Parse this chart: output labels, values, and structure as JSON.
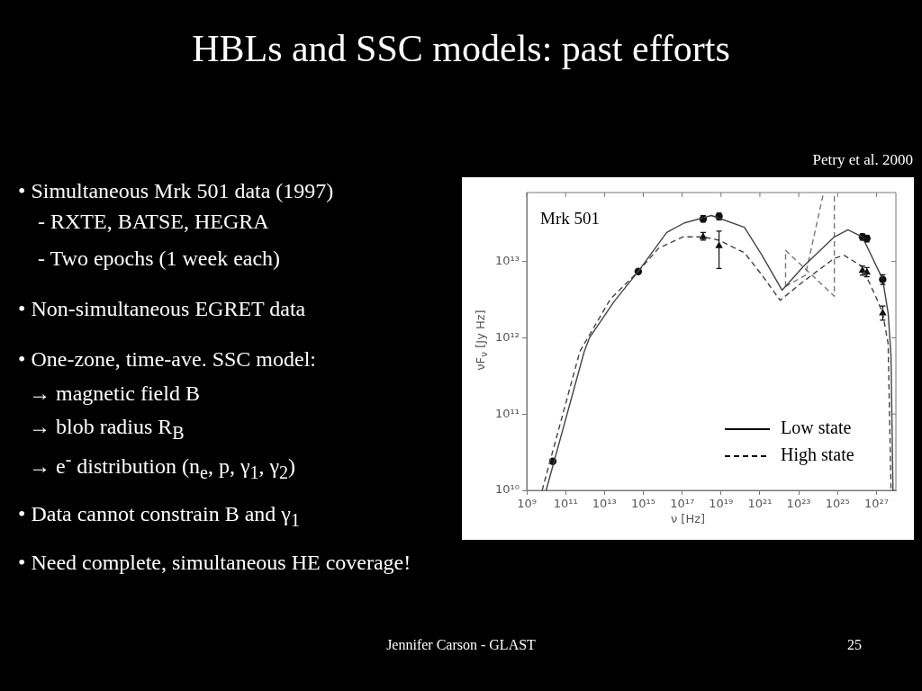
{
  "chart_data": {
    "type": "line",
    "title": "HBLs and SSC models: past efforts",
    "xlabel": "ν [Hz]",
    "ylabel": "νF$_{ν}$ [Jy Hz]",
    "log": "xy",
    "legend": "bottom right",
    "xlim": [
      1000000000.0,
      1e+28
    ],
    "ylim": [
      10000000000.0,
      80000000000000.0
    ],
    "xticks": [
      {
        "value": 1000000000.0,
        "label": "10⁹"
      },
      {
        "value": 100000000000.0,
        "label": "10¹¹"
      },
      {
        "value": 10000000000000.0,
        "label": "10¹³"
      },
      {
        "value": 1000000000000000.0,
        "label": "10¹⁵"
      },
      {
        "value": 1e+17,
        "label": "10¹⁷"
      },
      {
        "value": 1e+19,
        "label": "10¹⁹"
      },
      {
        "value": 1e+21,
        "label": "10²¹"
      },
      {
        "value": 1e+23,
        "label": "10²³"
      },
      {
        "value": 1e+25,
        "label": "10²⁵"
      },
      {
        "value": 1e+27,
        "label": "10²⁷"
      }
    ],
    "yticks": [
      {
        "value": 10000000000.0,
        "label": "10¹⁰"
      },
      {
        "value": 100000000000.0,
        "label": "10¹¹"
      },
      {
        "value": 1000000000000.0,
        "label": "10¹²"
      },
      {
        "value": 10000000000000.0,
        "label": "10¹³"
      }
    ],
    "annotations": [
      "Petry et al. 2000",
      "• Simultaneous Mrk 501 data (1997)",
      "- RXTE, BATSE, HEGRA",
      "- Two epochs (1 week each)",
      "• Non-simultaneous EGRET data",
      "• One-zone, time-ave. SSC model:",
      "→ magnetic field B",
      "→ blob radius R$_{B}$",
      "→ e$^{-}$ distribution (n$_{e}$, p, γ$_{1}$, γ$_{2}$)",
      "• Data cannot constrain B and γ$_{1}$",
      "• Need complete, simultaneous HE coverage!",
      "Mrk 501",
      "Jennifer Carson - GLAST",
      "25"
    ],
    "series": [
      {
        "type": "line",
        "name": "Low state",
        "color": "#444444",
        "line_style": "solid",
        "marker": "none",
        "x": [
          10000000000.0,
          910000000000.0,
          1700000000000.0,
          32000000000000.0,
          550000000000000.0,
          1.6e+16,
          1.3e+17,
          3.2e+18,
          1.6e+20,
          1.3e+21,
          7.9e+21,
          1.4e+22,
          1.8e+23,
          6.8e+24,
          3.4e+25,
          1.9e+26,
          2.1e+27,
          4e+27,
          5.6e+27,
          7.1e+27
        ],
        "values": [
          10000000000.0,
          660000000000.0,
          1000000000000.0,
          3000000000000.0,
          7400000000000.0,
          24000000000000.0,
          32000000000000.0,
          40000000000000.0,
          28000000000000.0,
          12000000000000.0,
          5400000000000.0,
          4200000000000.0,
          8700000000000.0,
          21000000000000.0,
          26000000000000.0,
          21000000000000.0,
          5800000000000.0,
          2100000000000.0,
          580000000000.0,
          10000000000.0
        ]
      },
      {
        "type": "line",
        "name": "High state",
        "color": "#444444",
        "line_style": "dashed",
        "marker": "none",
        "x": [
          6200000000.0,
          540000000000.0,
          20000000000000.0,
          550000000000000.0,
          6300000000000000.0,
          1.1e+17,
          1.2e+18,
          7.9e+18,
          1.6e+20,
          1.3e+21,
          1.1e+22,
          1.8e+23,
          6.8e+24,
          2.2e+25,
          1.7e+26,
          9.1e+26,
          2.1e+27,
          4e+27,
          5.6e+27
        ],
        "values": [
          10000000000.0,
          660000000000.0,
          3200000000000.0,
          7400000000000.0,
          15000000000000.0,
          21000000000000.0,
          21000000000000.0,
          19000000000000.0,
          13000000000000.0,
          6600000000000.0,
          3100000000000.0,
          5500000000000.0,
          11000000000000.0,
          12000000000000.0,
          8700000000000.0,
          3500000000000.0,
          2100000000000.0,
          830000000000.0,
          10000000000.0
        ]
      },
      {
        "type": "line",
        "color": "#777777",
        "line_style": "dashed",
        "marker": "none",
        "x": [
          2.1e+22,
          2.1e+22,
          6.8e+24,
          6.8e+24
        ],
        "values": [
          4700000000000.0,
          14000000000000.0,
          3500000000000.0,
          80000000000000.0
        ]
      },
      {
        "type": "line",
        "color": "#777777",
        "line_style": "dashed",
        "marker": "none",
        "x": [
          2.1e+22,
          2.2e+23,
          1.9e+24
        ],
        "values": [
          4700000000000.0,
          6600000000000.0,
          80000000000000.0
        ]
      },
      {
        "type": "scatter",
        "color": "#111111",
        "marker": "circle",
        "x": [
          22000000000.0,
          550000000000000.0,
          1.2e+18,
          7.9e+18,
          1.9e+26,
          3.2e+26,
          2.1e+27
        ],
        "values": [
          24000000000.0,
          7400000000000.0,
          36000000000000.0,
          39000000000000.0,
          21000000000000.0,
          20000000000000.0,
          5800000000000.0
        ],
        "errors": [
          null,
          null,
          [
            33000000000000.0,
            40000000000000.0
          ],
          [
            35000000000000.0,
            43000000000000.0
          ],
          [
            19000000000000.0,
            23000000000000.0
          ],
          [
            18000000000000.0,
            22000000000000.0
          ],
          [
            5000000000000.0,
            6700000000000.0
          ]
        ]
      },
      {
        "type": "scatter",
        "color": "#111111",
        "marker": "triangle",
        "x": [
          1.2e+18,
          7.9e+18,
          1.9e+26,
          3.2e+26,
          2.1e+27
        ],
        "values": [
          21000000000000.0,
          16000000000000.0,
          7600000000000.0,
          7200000000000.0,
          2100000000000.0
        ],
        "errors": [
          [
            19000000000000.0,
            24000000000000.0
          ],
          [
            8100000000000.0,
            25000000000000.0
          ],
          [
            6600000000000.0,
            8700000000000.0
          ],
          [
            6300000000000.0,
            8300000000000.0
          ],
          [
            1700000000000.0,
            2600000000000.0
          ]
        ]
      }
    ]
  }
}
